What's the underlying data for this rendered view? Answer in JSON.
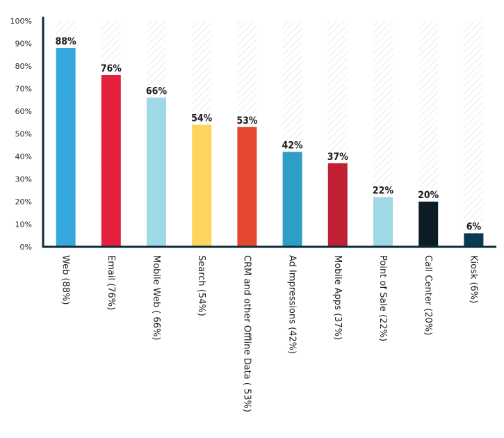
{
  "chart_data": {
    "type": "bar",
    "categories": [
      "Web (88%)",
      "Email (76%)",
      "Mobile Web ( 66%)",
      "Search (54%)",
      "CRM and other Offline Data ( 53%)",
      "Ad Impressions (42%)",
      "Mobile Apps (37%)",
      "Point of Sale (22%)",
      "Call Center (20%)",
      "Kiosk (6%)"
    ],
    "values": [
      88,
      76,
      66,
      54,
      53,
      42,
      37,
      22,
      20,
      6
    ],
    "value_labels": [
      "88%",
      "76%",
      "66%",
      "54%",
      "53%",
      "42%",
      "37%",
      "22%",
      "20%",
      "6%"
    ],
    "colors": [
      "#35a8e0",
      "#e3213f",
      "#9fd9e6",
      "#fbd55e",
      "#e54830",
      "#2f9ec6",
      "#c02033",
      "#9fd9e6",
      "#0d1c24",
      "#083a4f"
    ],
    "ylim": [
      0,
      100
    ],
    "yticks": [
      "0%",
      "10%",
      "20%",
      "30%",
      "40%",
      "50%",
      "60%",
      "70%",
      "80%",
      "90%",
      "100%"
    ],
    "grid": false,
    "background_hatch": true,
    "axis_color": "#0d2b3a"
  }
}
